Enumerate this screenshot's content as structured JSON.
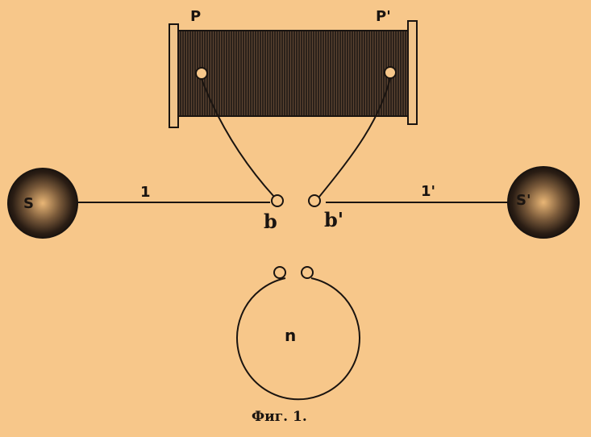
{
  "labels": {
    "coil_left_terminal": "P",
    "coil_right_terminal": "P'",
    "sphere_left": "S",
    "sphere_right": "S'",
    "wire_left": "1",
    "wire_right": "1'",
    "gap_left": "b",
    "gap_right": "b'",
    "ring": "n"
  },
  "caption": "Фиг. 1.",
  "colors": {
    "background": "#f7c78a",
    "ink": "#1a1410"
  }
}
